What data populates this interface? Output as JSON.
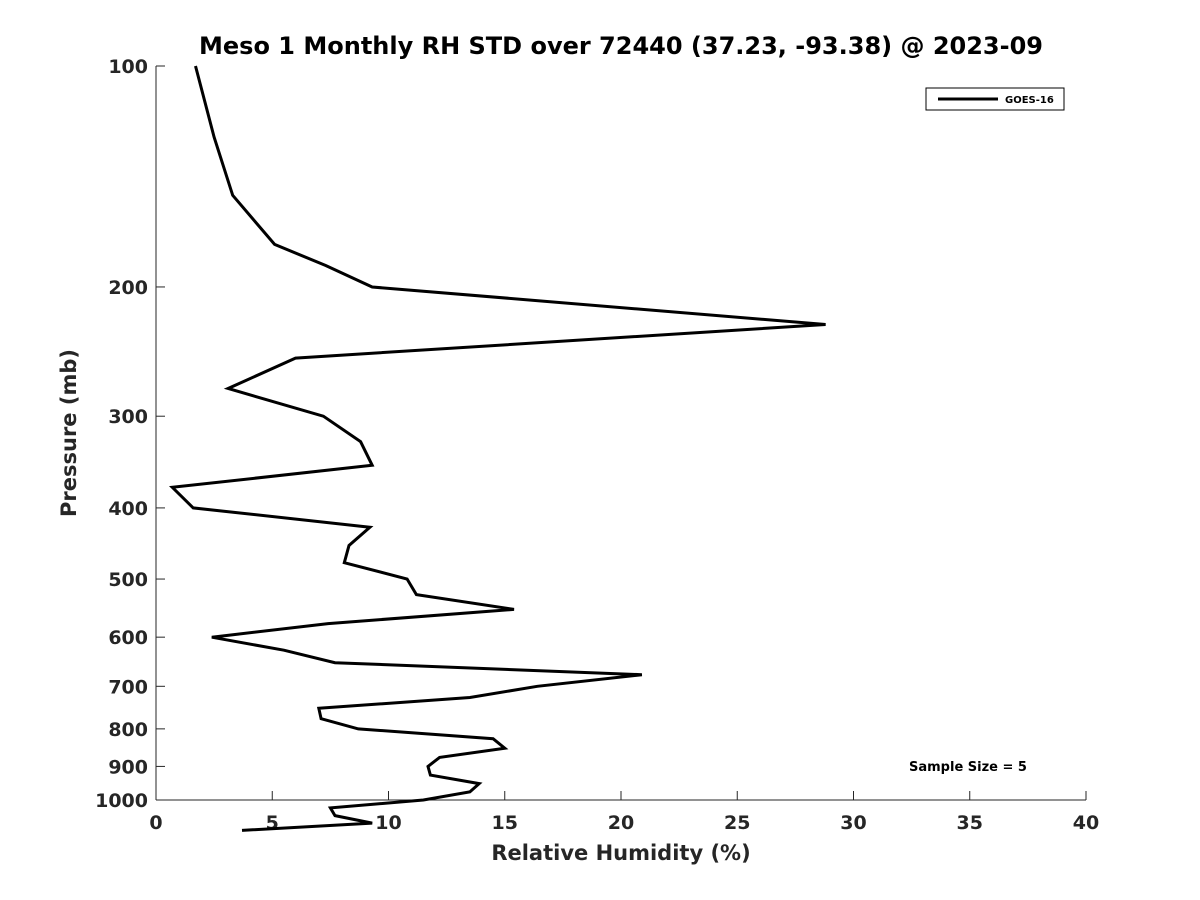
{
  "chart_data": {
    "type": "line",
    "title": "Meso 1 Monthly RH STD over 72440 (37.23, -93.38) @ 2023-09",
    "xlabel": "Relative Humidity (%)",
    "ylabel": "Pressure (mb)",
    "xlim": [
      0,
      40
    ],
    "ylim": [
      100,
      1000
    ],
    "y_scale": "log",
    "y_reversed": true,
    "grid": false,
    "x_ticks": [
      0,
      5,
      10,
      15,
      20,
      25,
      30,
      35,
      40
    ],
    "x_tick_labels": [
      "0",
      "5",
      "10",
      "15",
      "20",
      "25",
      "30",
      "35",
      "40"
    ],
    "y_ticks": [
      100,
      200,
      300,
      400,
      500,
      600,
      700,
      800,
      900,
      1000
    ],
    "y_tick_labels": [
      "100",
      "200",
      "300",
      "400",
      "500",
      "600",
      "700",
      "800",
      "900",
      "1000"
    ],
    "legend_position": "top-right",
    "annotation": "Sample Size = 5",
    "series": [
      {
        "name": "GOES-16",
        "color": "#000000",
        "x": [
          1.7,
          2.5,
          3.3,
          5.1,
          7.3,
          9.3,
          28.8,
          6.0,
          3.1,
          7.2,
          8.8,
          9.3,
          0.7,
          1.6,
          9.2,
          8.3,
          8.1,
          10.8,
          11.2,
          15.4,
          7.4,
          2.4,
          5.5,
          7.7,
          20.9,
          16.4,
          13.5,
          7.0,
          7.1,
          8.7,
          14.5,
          15.0,
          12.2,
          11.7,
          11.8,
          13.9,
          13.5,
          11.5,
          7.5,
          7.7,
          9.3,
          3.7
        ],
        "y": [
          100,
          125,
          150,
          175,
          187,
          200,
          225,
          250,
          275,
          300,
          325,
          350,
          375,
          400,
          425,
          450,
          475,
          500,
          525,
          550,
          575,
          600,
          625,
          650,
          675,
          700,
          725,
          750,
          775,
          800,
          825,
          850,
          875,
          900,
          925,
          950,
          975,
          1000,
          1025,
          1050,
          1075,
          1100
        ]
      }
    ]
  }
}
